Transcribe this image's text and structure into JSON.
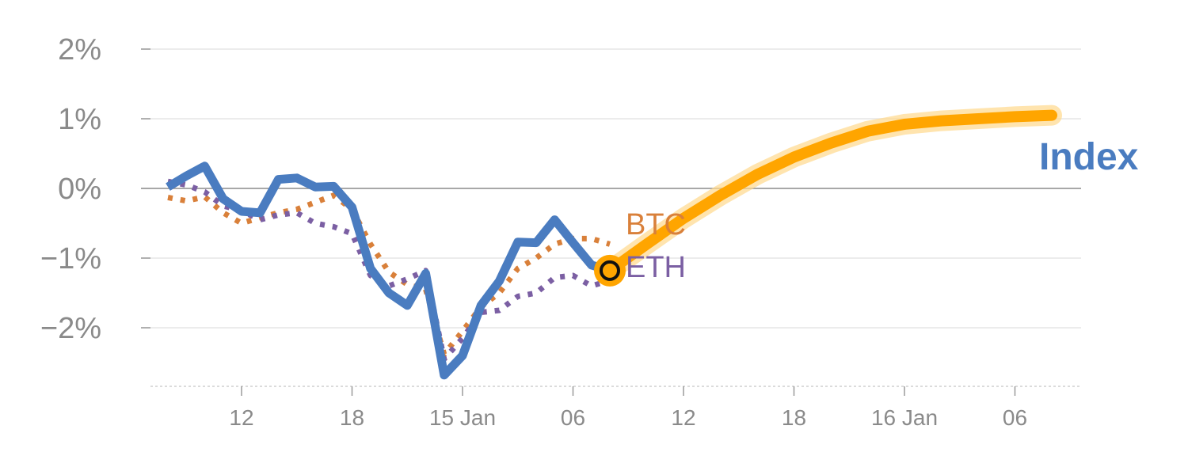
{
  "chart_data": {
    "type": "line",
    "title": "",
    "xlabel": "",
    "ylabel": "",
    "ylim": [
      -2.8,
      2
    ],
    "xlim": [
      0,
      96
    ],
    "y_ticks": [
      {
        "value": 2,
        "label": "2%"
      },
      {
        "value": 1,
        "label": "1%"
      },
      {
        "value": 0,
        "label": "0%"
      },
      {
        "value": -1,
        "label": "−1%"
      },
      {
        "value": -2,
        "label": "−2%"
      }
    ],
    "x_ticks": [
      {
        "value": 8,
        "label": "12"
      },
      {
        "value": 20,
        "label": "18"
      },
      {
        "value": 32,
        "label": "15 Jan"
      },
      {
        "value": 44,
        "label": "06"
      },
      {
        "value": 56,
        "label": "12"
      },
      {
        "value": 68,
        "label": "18"
      },
      {
        "value": 80,
        "label": "16 Jan"
      },
      {
        "value": 92,
        "label": "06"
      }
    ],
    "colors": {
      "index": "#4a7cc0",
      "btc": "#d9803a",
      "eth": "#7b5fa3",
      "forecast": "#ffa500",
      "forecast_glow": "#ffd98c",
      "marker_ring": "#ffa500"
    },
    "series": [
      {
        "name": "Index",
        "label": "Index",
        "style": "solid",
        "x": [
          0,
          2,
          4,
          6,
          8,
          10,
          12,
          14,
          16,
          18,
          20,
          22,
          24,
          26,
          28,
          30,
          32,
          34,
          36,
          38,
          40,
          42,
          44,
          46,
          48
        ],
        "values": [
          0.02,
          0.18,
          0.32,
          -0.15,
          -0.33,
          -0.35,
          0.13,
          0.15,
          0.02,
          0.03,
          -0.27,
          -1.15,
          -1.5,
          -1.68,
          -1.22,
          -2.68,
          -2.4,
          -1.68,
          -1.33,
          -0.77,
          -0.78,
          -0.45,
          -0.78,
          -1.1,
          -1.18
        ]
      },
      {
        "name": "BTC",
        "label": "BTC",
        "style": "dotted",
        "x": [
          0,
          2,
          4,
          6,
          8,
          10,
          12,
          14,
          16,
          18,
          20,
          22,
          24,
          26,
          28,
          30,
          32,
          34,
          36,
          38,
          40,
          42,
          44,
          46,
          48
        ],
        "values": [
          -0.13,
          -0.18,
          -0.12,
          -0.35,
          -0.5,
          -0.42,
          -0.35,
          -0.3,
          -0.2,
          -0.1,
          -0.3,
          -0.8,
          -1.2,
          -1.38,
          -1.45,
          -2.38,
          -2.05,
          -1.7,
          -1.5,
          -1.15,
          -1.0,
          -0.8,
          -0.72,
          -0.72,
          -0.8
        ]
      },
      {
        "name": "ETH",
        "label": "ETH",
        "style": "dotted",
        "x": [
          0,
          2,
          4,
          6,
          8,
          10,
          12,
          14,
          16,
          18,
          20,
          22,
          24,
          26,
          28,
          30,
          32,
          34,
          36,
          38,
          40,
          42,
          44,
          46,
          48
        ],
        "values": [
          0.1,
          0.05,
          -0.05,
          -0.25,
          -0.32,
          -0.45,
          -0.38,
          -0.35,
          -0.5,
          -0.55,
          -0.65,
          -1.25,
          -1.4,
          -1.3,
          -1.18,
          -2.45,
          -2.15,
          -1.78,
          -1.75,
          -1.55,
          -1.5,
          -1.28,
          -1.25,
          -1.4,
          -1.32
        ]
      },
      {
        "name": "Forecast",
        "label": "",
        "style": "forecast",
        "x": [
          48,
          52,
          56,
          60,
          64,
          68,
          72,
          76,
          80,
          84,
          88,
          92,
          96
        ],
        "values": [
          -1.18,
          -0.8,
          -0.43,
          -0.1,
          0.2,
          0.45,
          0.65,
          0.82,
          0.92,
          0.97,
          1.0,
          1.03,
          1.05
        ]
      }
    ],
    "marker": {
      "x": 48,
      "y": -1.18
    }
  }
}
